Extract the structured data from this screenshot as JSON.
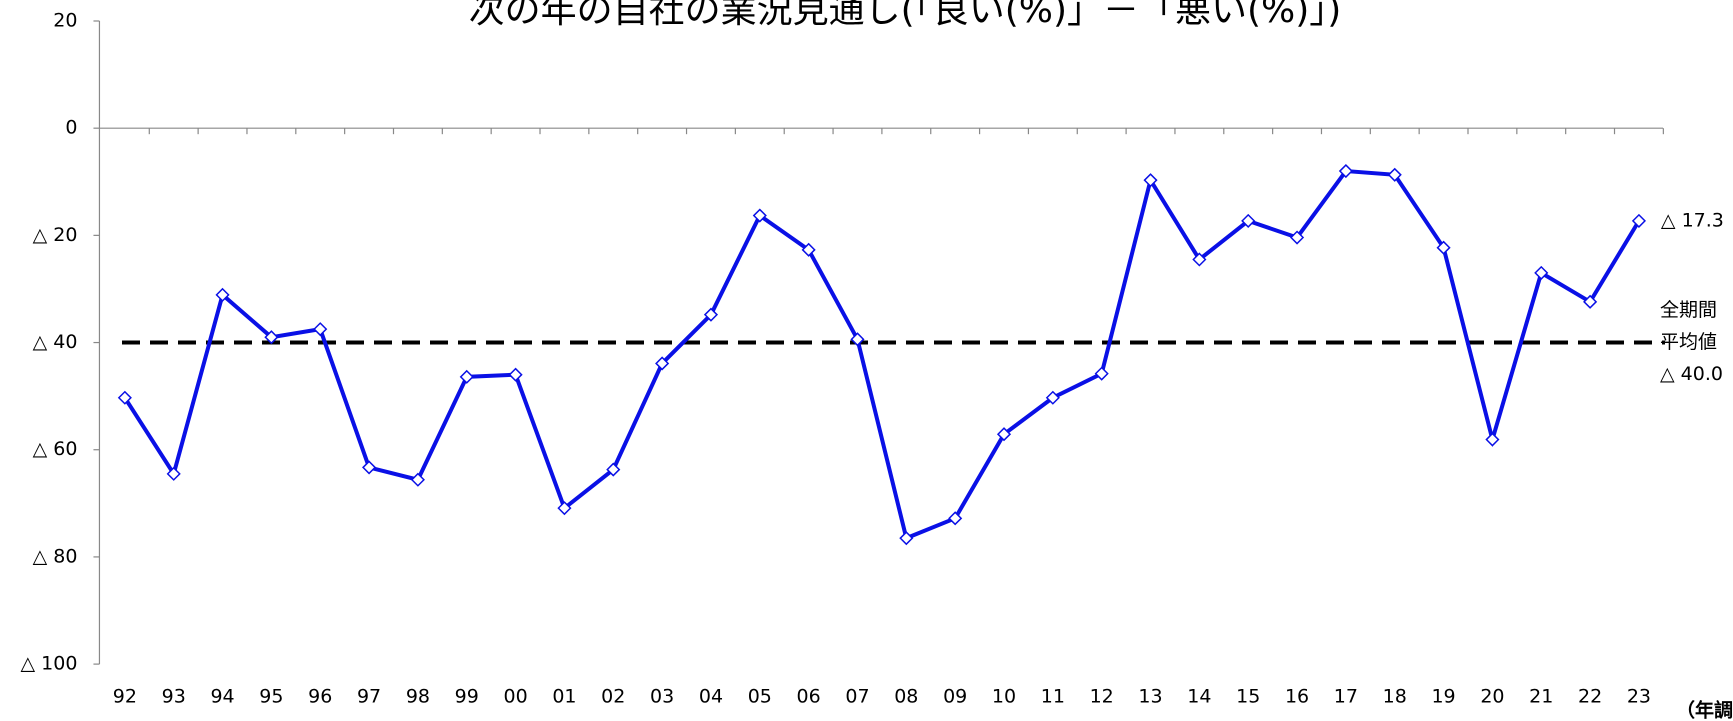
{
  "chart_data": {
    "type": "line",
    "title": "次の年の自社の業況見通し(「良い(%)」－「悪い(%)」)",
    "x_axis_label": "（年調",
    "categories": [
      "92",
      "93",
      "94",
      "95",
      "96",
      "97",
      "98",
      "99",
      "00",
      "01",
      "02",
      "03",
      "04",
      "05",
      "06",
      "07",
      "08",
      "09",
      "10",
      "11",
      "12",
      "13",
      "14",
      "15",
      "16",
      "17",
      "18",
      "19",
      "20",
      "21",
      "22",
      "23"
    ],
    "series": [
      {
        "color": "#0a10e6",
        "values": [
          -50.3,
          -64.5,
          -31.1,
          -39.0,
          -37.5,
          -63.3,
          -65.6,
          -46.4,
          -46.0,
          -70.9,
          -63.7,
          -43.9,
          -34.8,
          -16.3,
          -22.7,
          -39.4,
          -76.5,
          -72.8,
          -57.1,
          -50.3,
          -45.8,
          -9.7,
          -24.5,
          -17.3,
          -20.4,
          -8.0,
          -8.7,
          -22.3,
          -58.1,
          -27.0,
          -32.4,
          -17.3
        ],
        "value_labels": [
          null,
          null,
          null,
          null,
          null,
          null,
          null,
          null,
          null,
          null,
          null,
          null,
          null,
          null,
          null,
          null,
          null,
          null,
          null,
          null,
          null,
          null,
          null,
          null,
          null,
          null,
          null,
          null,
          null,
          null,
          null,
          "△ 17.3"
        ]
      }
    ],
    "reference_line": {
      "value": -40,
      "color": "#000000",
      "labels": [
        "全期間",
        "平均値",
        "△ 40.0"
      ]
    },
    "ylim": [
      -100,
      20
    ],
    "yticks": [
      {
        "value": -100,
        "label": "△ 100"
      },
      {
        "value": -80,
        "label": "△ 80"
      },
      {
        "value": -60,
        "label": "△ 60"
      },
      {
        "value": -40,
        "label": "△ 40"
      },
      {
        "value": -20,
        "label": "△ 20"
      },
      0,
      20
    ],
    "grid": false
  }
}
